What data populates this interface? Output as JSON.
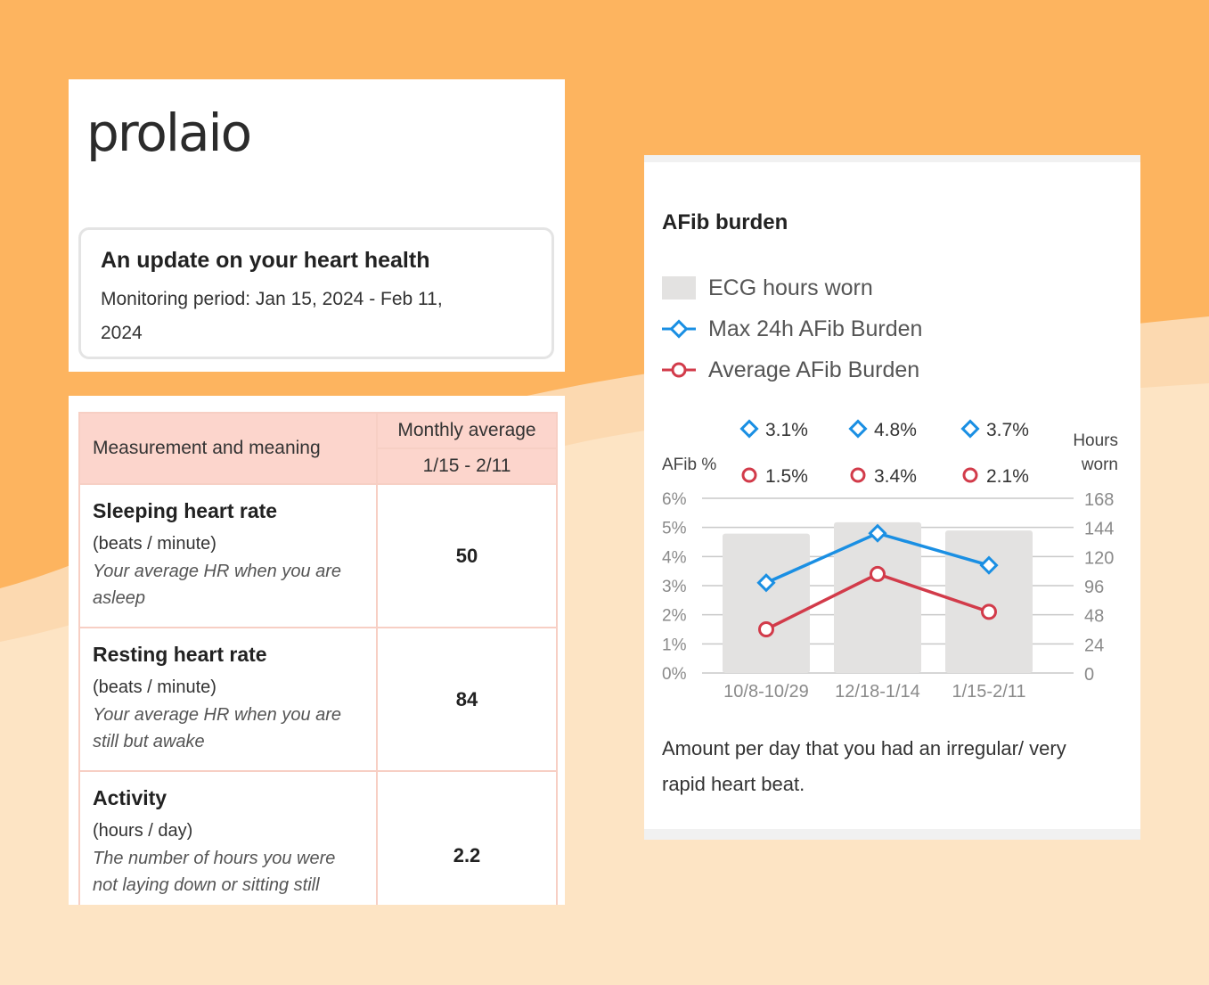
{
  "brand": {
    "logo_text": "prolaio"
  },
  "update": {
    "title": "An update on your heart health",
    "period_line1": "Monitoring period: Jan 15, 2024 - Feb 11,",
    "period_line2": "2024"
  },
  "table": {
    "header_measurement": "Measurement and meaning",
    "header_avg": "Monthly average",
    "header_range": "1/15 - 2/11",
    "rows": [
      {
        "name": "Sleeping heart rate",
        "unit": "(beats / minute)",
        "desc": "Your average HR when you are asleep",
        "value": "50"
      },
      {
        "name": "Resting heart rate",
        "unit": "(beats / minute)",
        "desc": "Your average HR when you are still but awake",
        "value": "84"
      },
      {
        "name": "Activity",
        "unit": "(hours / day)",
        "desc": "The number of hours you were not laying down or sitting still",
        "value": "2.2"
      }
    ]
  },
  "colors": {
    "background": "#fdb45f",
    "max_series": "#1a8fe3",
    "avg_series": "#d23b4a",
    "bar": "#e3e2e1"
  },
  "chart_data": {
    "type": "bar",
    "title": "AFib burden",
    "legend": [
      "ECG hours worn",
      "Max 24h AFib Burden",
      "Average AFib Burden"
    ],
    "ylabel_left": "AFib %",
    "ylabel_right_1": "Hours",
    "ylabel_right_2": "worn",
    "categories": [
      "10/8-10/29",
      "12/18-1/14",
      "1/15-2/11"
    ],
    "left_ylim": [
      0,
      6
    ],
    "left_ticks": [
      "6%",
      "5%",
      "4%",
      "3%",
      "2%",
      "1%",
      "0%"
    ],
    "right_ylim": [
      0,
      168
    ],
    "right_ticks": [
      "168",
      "144",
      "120",
      "96",
      "48",
      "24",
      "0"
    ],
    "series": [
      {
        "name": "ECG hours worn",
        "kind": "bar",
        "values": [
          134,
          145,
          137
        ]
      },
      {
        "name": "Max 24h AFib Burden",
        "kind": "line",
        "values": [
          3.1,
          4.8,
          3.7
        ],
        "labels": [
          "3.1%",
          "4.8%",
          "3.7%"
        ]
      },
      {
        "name": "Average AFib Burden",
        "kind": "line",
        "values": [
          1.5,
          3.4,
          2.1
        ],
        "labels": [
          "1.5%",
          "3.4%",
          "2.1%"
        ]
      }
    ],
    "footnote": "Amount per day that you had an irregular/ very rapid heart beat."
  }
}
